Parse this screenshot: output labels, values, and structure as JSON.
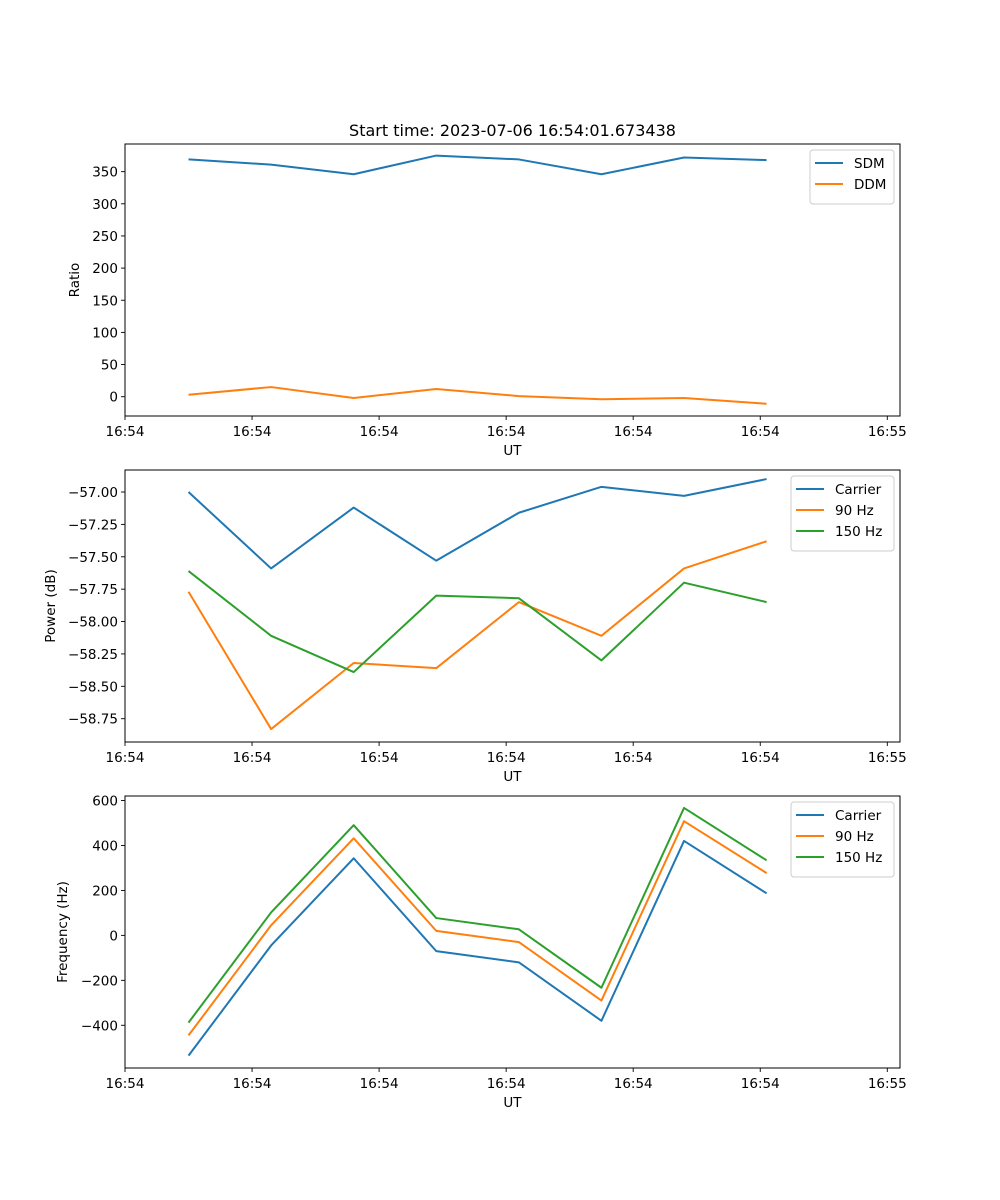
{
  "figure_title": "Start time: 2023-07-06 16:54:01.673438",
  "colors": {
    "blue": "#1f77b4",
    "orange": "#ff7f0e",
    "green": "#2ca02c"
  },
  "chart_data": [
    {
      "type": "line",
      "title": "Start time: 2023-07-06 16:54:01.673438",
      "xlabel": "UT",
      "ylabel": "Ratio",
      "xlim": [
        0,
        6.1
      ],
      "ylim": [
        -30,
        393
      ],
      "x": [
        0.5,
        1.15,
        1.8,
        2.45,
        3.1,
        3.75,
        4.4,
        5.05
      ],
      "xticks": [
        0,
        1,
        2,
        3,
        4,
        5,
        6
      ],
      "xtick_labels": [
        "16:54",
        "16:54",
        "16:54",
        "16:54",
        "16:54",
        "16:54",
        "16:55"
      ],
      "yticks": [
        0,
        50,
        100,
        150,
        200,
        250,
        300,
        350
      ],
      "ytick_labels": [
        "0",
        "50",
        "100",
        "150",
        "200",
        "250",
        "300",
        "350"
      ],
      "legend_position": "top-right",
      "series": [
        {
          "name": "SDM",
          "color": "#1f77b4",
          "values": [
            369,
            361,
            346,
            375,
            369,
            346,
            372,
            368
          ]
        },
        {
          "name": "DDM",
          "color": "#ff7f0e",
          "values": [
            3,
            15,
            -2,
            12,
            1,
            -4,
            -2,
            -11
          ]
        }
      ]
    },
    {
      "type": "line",
      "title": "",
      "xlabel": "UT",
      "ylabel": "Power (dB)",
      "xlim": [
        0,
        6.1
      ],
      "ylim": [
        -58.93,
        -56.83
      ],
      "x": [
        0.5,
        1.15,
        1.8,
        2.45,
        3.1,
        3.75,
        4.4,
        5.05
      ],
      "xticks": [
        0,
        1,
        2,
        3,
        4,
        5,
        6
      ],
      "xtick_labels": [
        "16:54",
        "16:54",
        "16:54",
        "16:54",
        "16:54",
        "16:54",
        "16:55"
      ],
      "yticks": [
        -58.75,
        -58.5,
        -58.25,
        -58.0,
        -57.75,
        -57.5,
        -57.25,
        -57.0
      ],
      "ytick_labels": [
        "−58.75",
        "−58.50",
        "−58.25",
        "−58.00",
        "−57.75",
        "−57.50",
        "−57.25",
        "−57.00"
      ],
      "legend_position": "top-right",
      "series": [
        {
          "name": "Carrier",
          "color": "#1f77b4",
          "values": [
            -57.0,
            -57.59,
            -57.12,
            -57.53,
            -57.16,
            -56.96,
            -57.03,
            -56.9
          ]
        },
        {
          "name": "90 Hz",
          "color": "#ff7f0e",
          "values": [
            -57.77,
            -58.83,
            -58.32,
            -58.36,
            -57.85,
            -58.11,
            -57.59,
            -57.38
          ]
        },
        {
          "name": "150 Hz",
          "color": "#2ca02c",
          "values": [
            -57.61,
            -58.11,
            -58.39,
            -57.8,
            -57.82,
            -58.3,
            -57.7,
            -57.85
          ]
        }
      ]
    },
    {
      "type": "line",
      "title": "",
      "xlabel": "UT",
      "ylabel": "Frequency (Hz)",
      "xlim": [
        0,
        6.1
      ],
      "ylim": [
        -590,
        620
      ],
      "x": [
        0.5,
        1.15,
        1.8,
        2.45,
        3.1,
        3.75,
        4.4,
        5.05
      ],
      "xticks": [
        0,
        1,
        2,
        3,
        4,
        5,
        6
      ],
      "xtick_labels": [
        "16:54",
        "16:54",
        "16:54",
        "16:54",
        "16:54",
        "16:54",
        "16:55"
      ],
      "yticks": [
        -400,
        -200,
        0,
        200,
        400,
        600
      ],
      "ytick_labels": [
        "−400",
        "−200",
        "0",
        "200",
        "400",
        "600"
      ],
      "legend_position": "top-right",
      "series": [
        {
          "name": "Carrier",
          "color": "#1f77b4",
          "values": [
            -535,
            -45,
            343,
            -70,
            -120,
            -380,
            420,
            187
          ]
        },
        {
          "name": "90 Hz",
          "color": "#ff7f0e",
          "values": [
            -445,
            45,
            432,
            20,
            -30,
            -290,
            508,
            277
          ]
        },
        {
          "name": "150 Hz",
          "color": "#2ca02c",
          "values": [
            -388,
            102,
            490,
            77,
            27,
            -233,
            567,
            334
          ]
        }
      ]
    }
  ]
}
